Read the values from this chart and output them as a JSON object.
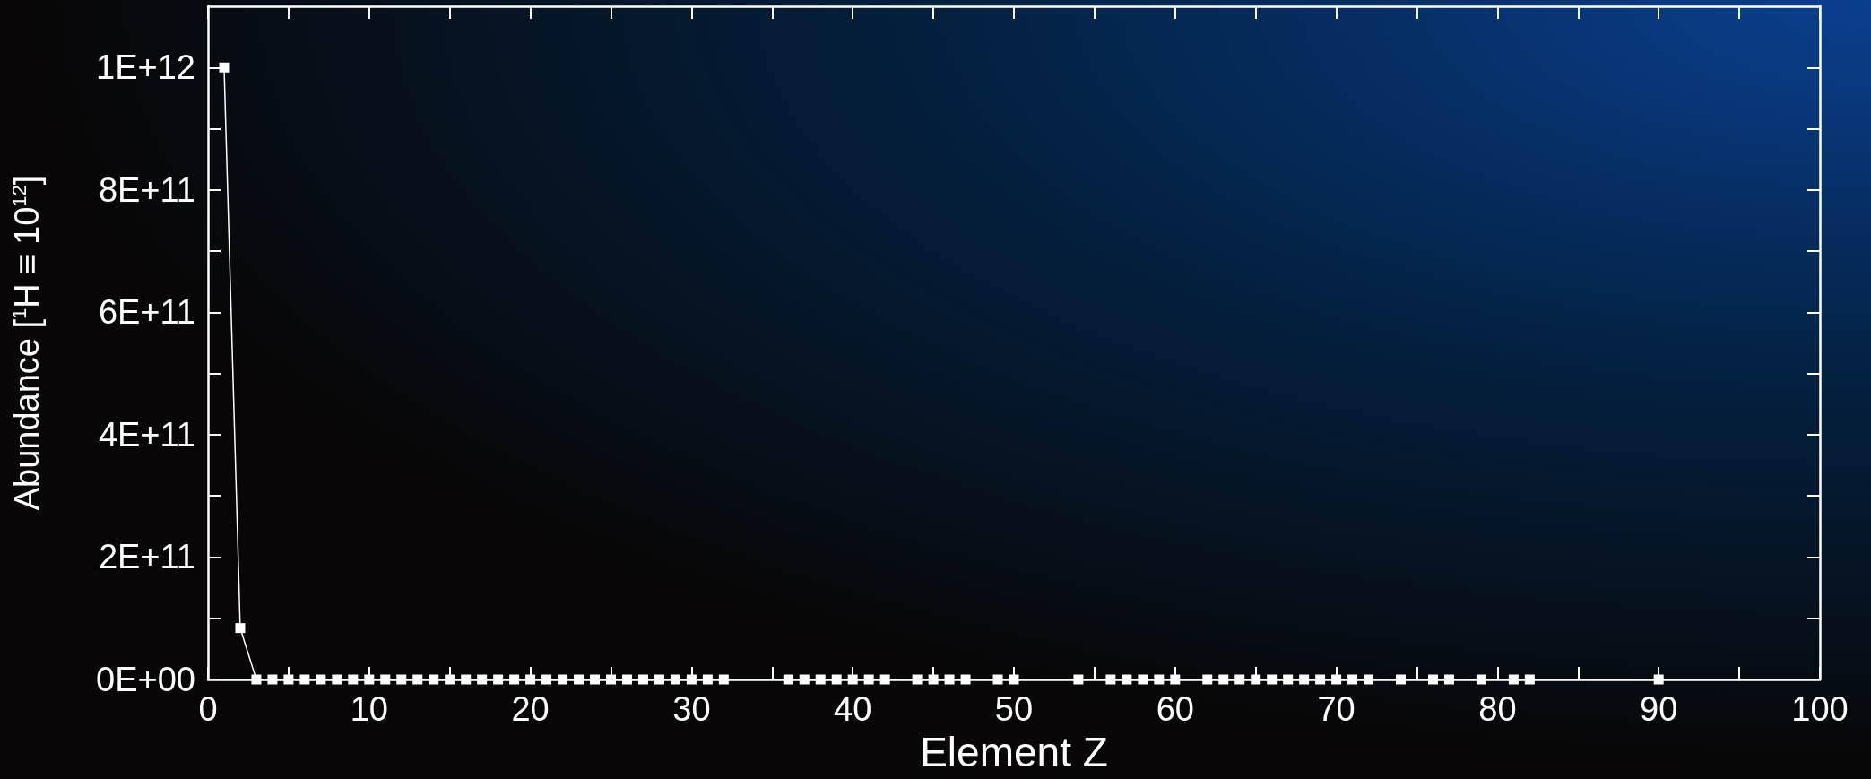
{
  "chart_data": {
    "type": "line",
    "xlabel": "Element Z",
    "ylabel": "Abundance [$^{1}$H ≡ 10$^{12}$]",
    "series": [
      {
        "color": "#ffffff",
        "x": [
          1,
          2,
          3,
          4,
          5,
          6,
          7,
          8,
          9,
          10,
          11,
          12,
          13,
          14,
          15,
          16,
          17,
          18,
          19,
          20,
          21,
          22,
          23,
          24,
          25,
          26,
          27,
          28,
          29,
          30,
          31,
          32,
          36,
          37,
          38,
          39,
          40,
          41,
          42,
          44,
          45,
          46,
          47,
          49,
          50,
          54,
          56,
          57,
          58,
          59,
          60,
          62,
          63,
          64,
          65,
          66,
          67,
          68,
          69,
          70,
          71,
          72,
          74,
          76,
          77,
          79,
          81,
          82,
          90
        ],
        "values": [
          1000000000000.0,
          84000000000.0,
          0,
          0,
          0,
          0,
          0,
          0,
          0,
          0,
          0,
          0,
          0,
          0,
          0,
          0,
          0,
          0,
          0,
          0,
          0,
          0,
          0,
          0,
          0,
          0,
          0,
          0,
          0,
          0,
          0,
          0,
          0,
          0,
          0,
          0,
          0,
          0,
          0,
          0,
          0,
          0,
          0,
          0,
          0,
          0,
          0,
          0,
          0,
          0,
          0,
          0,
          0,
          0,
          0,
          0,
          0,
          0,
          0,
          0,
          0,
          0,
          0,
          0,
          0,
          0,
          0,
          0,
          0
        ]
      }
    ],
    "xlim": [
      0,
      100
    ],
    "xticks": [
      0,
      {
        "value": 5,
        "label": null
      },
      10,
      {
        "value": 15,
        "label": null
      },
      20,
      {
        "value": 25,
        "label": null
      },
      30,
      {
        "value": 35,
        "label": null
      },
      40,
      {
        "value": 45,
        "label": null
      },
      50,
      {
        "value": 55,
        "label": null
      },
      60,
      {
        "value": 65,
        "label": null
      },
      70,
      {
        "value": 75,
        "label": null
      },
      80,
      {
        "value": 85,
        "label": null
      },
      90,
      {
        "value": 95,
        "label": null
      },
      100
    ],
    "ylim": [
      0,
      1100000000000.0
    ],
    "yticks": [
      {
        "value": 0,
        "label": "0E+00"
      },
      {
        "value": 100000000000.0,
        "label": null
      },
      {
        "value": 200000000000.0,
        "label": "2E+11"
      },
      {
        "value": 300000000000.0,
        "label": null
      },
      {
        "value": 400000000000.0,
        "label": "4E+11"
      },
      {
        "value": 500000000000.0,
        "label": null
      },
      {
        "value": 600000000000.0,
        "label": "6E+11"
      },
      {
        "value": 700000000000.0,
        "label": null
      },
      {
        "value": 800000000000.0,
        "label": "8E+11"
      },
      {
        "value": 900000000000.0,
        "label": null
      },
      {
        "value": 1000000000000.0,
        "label": "1E+12"
      }
    ],
    "marker": "square",
    "line_style": "solid"
  }
}
